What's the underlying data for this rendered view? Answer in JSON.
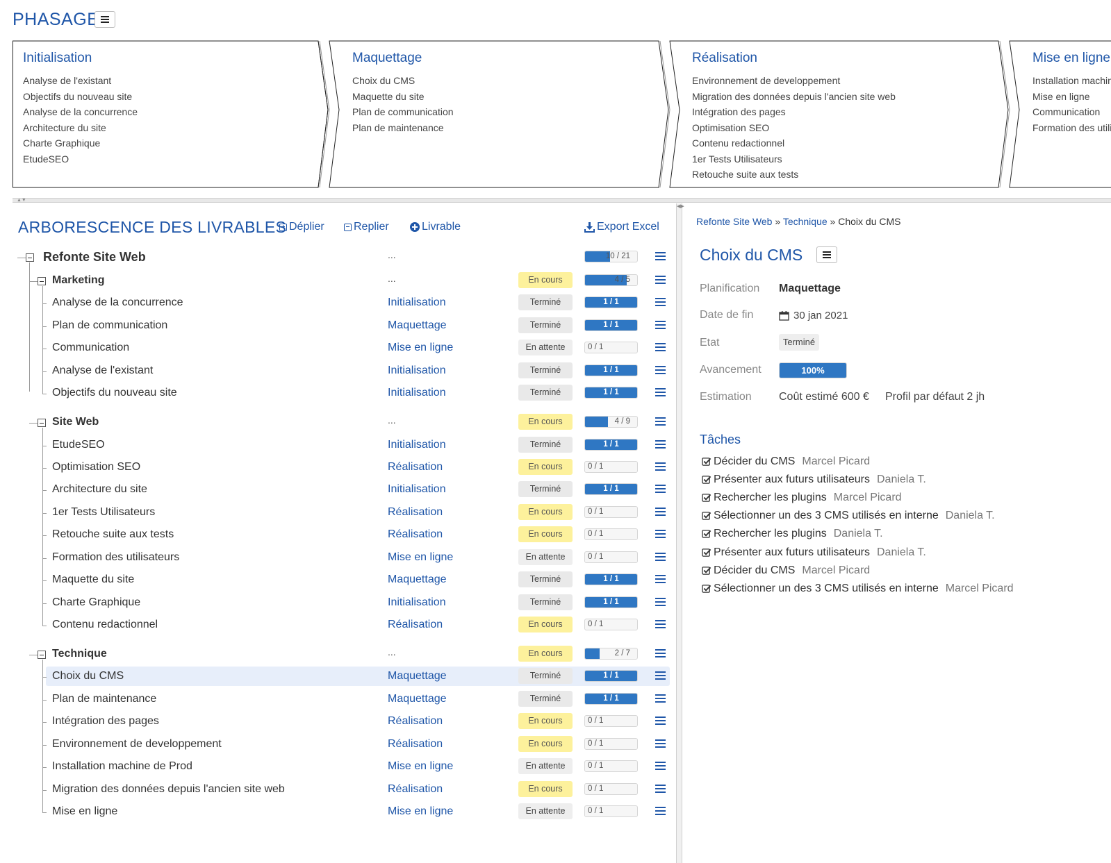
{
  "header": {
    "title": "PHASAGE"
  },
  "phases": [
    {
      "name": "Initialisation",
      "items": [
        "Analyse de l'existant",
        "Objectifs du nouveau site",
        "Analyse de la concurrence",
        "Architecture du site",
        "Charte Graphique",
        "EtudeSEO"
      ]
    },
    {
      "name": "Maquettage",
      "items": [
        "Choix du CMS",
        "Maquette du site",
        "Plan de communication",
        "Plan de maintenance"
      ]
    },
    {
      "name": "Réalisation",
      "items": [
        "Environnement de developpement",
        "Migration des données depuis l'ancien site web",
        "Intégration des pages",
        "Optimisation SEO",
        "Contenu redactionnel",
        "1er Tests Utilisateurs",
        "Retouche suite aux tests"
      ]
    },
    {
      "name": "Mise en ligne",
      "items": [
        "Installation machine de Prod",
        "Mise en ligne",
        "Communication",
        "Formation des utilisateurs"
      ]
    }
  ],
  "tree": {
    "title": "ARBORESCENCE DES LIVRABLES",
    "toolbar": {
      "expand": "Déplier",
      "collapse": "Replier",
      "add": "Livrable",
      "export": "Export Excel"
    },
    "rows": [
      {
        "level": 0,
        "label": "Refonte Site Web",
        "phase": "...",
        "status": "",
        "done": 10,
        "total": 21,
        "progress_text": "10 / 21"
      },
      {
        "level": 1,
        "label": "Marketing",
        "phase": "...",
        "status": "En cours",
        "done": 4,
        "total": 5,
        "progress_text": "4 / 5"
      },
      {
        "level": 2,
        "label": "Analyse de la concurrence",
        "phase": "Initialisation",
        "status": "Terminé",
        "done": 1,
        "total": 1,
        "progress_text": "1 / 1"
      },
      {
        "level": 2,
        "label": "Plan de communication",
        "phase": "Maquettage",
        "status": "Terminé",
        "done": 1,
        "total": 1,
        "progress_text": "1 / 1"
      },
      {
        "level": 2,
        "label": "Communication",
        "phase": "Mise en ligne",
        "status": "En attente",
        "done": 0,
        "total": 1,
        "progress_text": "0 / 1"
      },
      {
        "level": 2,
        "label": "Analyse de l'existant",
        "phase": "Initialisation",
        "status": "Terminé",
        "done": 1,
        "total": 1,
        "progress_text": "1 / 1"
      },
      {
        "level": 2,
        "label": "Objectifs du nouveau site",
        "phase": "Initialisation",
        "status": "Terminé",
        "done": 1,
        "total": 1,
        "progress_text": "1 / 1"
      },
      {
        "level": 1,
        "label": "Site Web",
        "phase": "...",
        "status": "En cours",
        "done": 4,
        "total": 9,
        "progress_text": "4 / 9"
      },
      {
        "level": 2,
        "label": "EtudeSEO",
        "phase": "Initialisation",
        "status": "Terminé",
        "done": 1,
        "total": 1,
        "progress_text": "1 / 1"
      },
      {
        "level": 2,
        "label": "Optimisation SEO",
        "phase": "Réalisation",
        "status": "En cours",
        "done": 0,
        "total": 1,
        "progress_text": "0 / 1"
      },
      {
        "level": 2,
        "label": "Architecture du site",
        "phase": "Initialisation",
        "status": "Terminé",
        "done": 1,
        "total": 1,
        "progress_text": "1 / 1"
      },
      {
        "level": 2,
        "label": "1er Tests Utilisateurs",
        "phase": "Réalisation",
        "status": "En cours",
        "done": 0,
        "total": 1,
        "progress_text": "0 / 1"
      },
      {
        "level": 2,
        "label": "Retouche suite aux tests",
        "phase": "Réalisation",
        "status": "En cours",
        "done": 0,
        "total": 1,
        "progress_text": "0 / 1"
      },
      {
        "level": 2,
        "label": "Formation des utilisateurs",
        "phase": "Mise en ligne",
        "status": "En attente",
        "done": 0,
        "total": 1,
        "progress_text": "0 / 1"
      },
      {
        "level": 2,
        "label": "Maquette du site",
        "phase": "Maquettage",
        "status": "Terminé",
        "done": 1,
        "total": 1,
        "progress_text": "1 / 1"
      },
      {
        "level": 2,
        "label": "Charte Graphique",
        "phase": "Initialisation",
        "status": "Terminé",
        "done": 1,
        "total": 1,
        "progress_text": "1 / 1"
      },
      {
        "level": 2,
        "label": "Contenu redactionnel",
        "phase": "Réalisation",
        "status": "En cours",
        "done": 0,
        "total": 1,
        "progress_text": "0 / 1"
      },
      {
        "level": 1,
        "label": "Technique",
        "phase": "...",
        "status": "En cours",
        "done": 2,
        "total": 7,
        "progress_text": "2 / 7"
      },
      {
        "level": 2,
        "label": "Choix du CMS",
        "phase": "Maquettage",
        "status": "Terminé",
        "done": 1,
        "total": 1,
        "progress_text": "1 / 1",
        "selected": true
      },
      {
        "level": 2,
        "label": "Plan de maintenance",
        "phase": "Maquettage",
        "status": "Terminé",
        "done": 1,
        "total": 1,
        "progress_text": "1 / 1"
      },
      {
        "level": 2,
        "label": "Intégration des pages",
        "phase": "Réalisation",
        "status": "En cours",
        "done": 0,
        "total": 1,
        "progress_text": "0 / 1"
      },
      {
        "level": 2,
        "label": "Environnement de developpement",
        "phase": "Réalisation",
        "status": "En cours",
        "done": 0,
        "total": 1,
        "progress_text": "0 / 1"
      },
      {
        "level": 2,
        "label": "Installation machine de Prod",
        "phase": "Mise en ligne",
        "status": "En attente",
        "done": 0,
        "total": 1,
        "progress_text": "0 / 1"
      },
      {
        "level": 2,
        "label": "Migration des données depuis l'ancien site web",
        "phase": "Réalisation",
        "status": "En cours",
        "done": 0,
        "total": 1,
        "progress_text": "0 / 1"
      },
      {
        "level": 2,
        "label": "Mise en ligne",
        "phase": "Mise en ligne",
        "status": "En attente",
        "done": 0,
        "total": 1,
        "progress_text": "0 / 1"
      }
    ]
  },
  "detail": {
    "breadcrumb": [
      "Refonte Site Web",
      "Technique",
      "Choix du CMS"
    ],
    "breadcrumb_sep": "»",
    "title": "Choix du CMS",
    "fields": {
      "planification_label": "Planification",
      "planification_value": "Maquettage",
      "date_label": "Date de fin",
      "date_value": "30 jan 2021",
      "etat_label": "Etat",
      "etat_value": "Terminé",
      "avancement_label": "Avancement",
      "avancement_value": "100%",
      "avancement_fraction": 1.0,
      "estimation_label": "Estimation",
      "estimation_cost": "Coût estimé 600 €",
      "estimation_profile": "Profil par défaut 2 jh"
    },
    "tasks_title": "Tâches",
    "tasks": [
      {
        "label": "Décider du CMS",
        "assignee": "Marcel Picard"
      },
      {
        "label": "Présenter aux futurs utilisateurs",
        "assignee": "Daniela T."
      },
      {
        "label": "Rechercher les plugins",
        "assignee": "Marcel Picard"
      },
      {
        "label": "Sélectionner un des 3 CMS utilisés en interne",
        "assignee": "Daniela T."
      },
      {
        "label": "Rechercher les plugins",
        "assignee": "Daniela T."
      },
      {
        "label": "Présenter aux futurs utilisateurs",
        "assignee": "Daniela T."
      },
      {
        "label": "Décider du CMS",
        "assignee": "Marcel Picard"
      },
      {
        "label": "Sélectionner un des 3 CMS utilisés en interne",
        "assignee": "Marcel Picard"
      }
    ]
  },
  "colors": {
    "accent": "#1f56a8",
    "progress": "#2f77c3",
    "en_cours": "#fdf19c",
    "termine": "#e9e9e9",
    "selected_row": "#e7eefa"
  },
  "icons": {
    "menu": "hamburger-icon",
    "calendar": "calendar-icon",
    "check": "checkbox-checked-icon",
    "export": "download-icon"
  }
}
